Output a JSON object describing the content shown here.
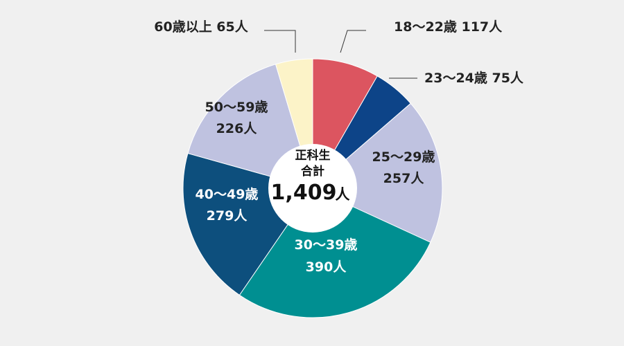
{
  "chart_data": {
    "type": "pie",
    "center": {
      "line1": "正科生",
      "line2": "合計",
      "total": "1,409",
      "unit": "人"
    },
    "unit": "人",
    "slices": [
      {
        "range": "18～22歳",
        "value": 117,
        "value_label": "117人",
        "color": "#dc5560",
        "label_color": "#222222"
      },
      {
        "range": "23～24歳",
        "value": 75,
        "value_label": "75人",
        "color": "#0d4488",
        "label_color": "#222222"
      },
      {
        "range": "25～29歳",
        "value": 257,
        "value_label": "257人",
        "color": "#bfc2e0",
        "label_color": "#222222"
      },
      {
        "range": "30～39歳",
        "value": 390,
        "value_label": "390人",
        "color": "#008f91",
        "label_color": "#ffffff"
      },
      {
        "range": "40～49歳",
        "value": 279,
        "value_label": "279人",
        "color": "#0d4f7d",
        "label_color": "#ffffff"
      },
      {
        "range": "50～59歳",
        "value": 226,
        "value_label": "226人",
        "color": "#bfc2e0",
        "label_color": "#222222"
      },
      {
        "range": "60歳以上",
        "value": 65,
        "value_label": "65人",
        "color": "#fcf3c8",
        "label_color": "#222222"
      }
    ]
  }
}
